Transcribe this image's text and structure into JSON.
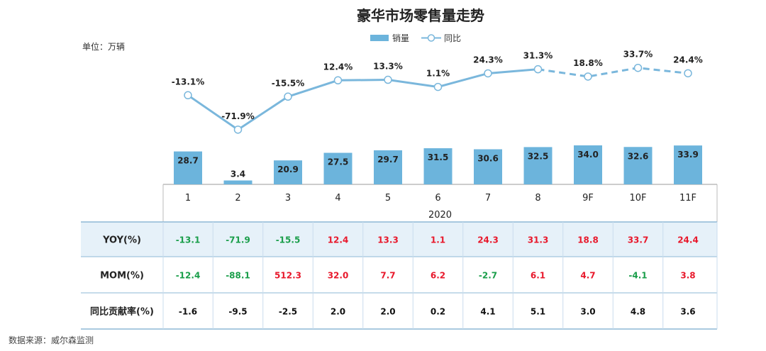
{
  "title": "豪华市场零售量走势",
  "unit_label": "单位：万辆",
  "source": "数据来源：威尔森监测",
  "colors": {
    "bar": "#6cb4dc",
    "line": "#7ab7dc",
    "positive": "#e8192c",
    "negative": "#1a9e4a",
    "neutral": "#111111",
    "yoy_row_bg": "#e6f1f9",
    "border": "#8db8d6"
  },
  "chart_data": {
    "type": "bar",
    "title": "豪华市场零售量走势",
    "unit": "万辆",
    "categories": [
      "1",
      "2",
      "3",
      "4",
      "5",
      "6",
      "7",
      "8",
      "9F",
      "10F",
      "11F"
    ],
    "year_label": "2020",
    "series": [
      {
        "name": "销量",
        "type": "bar",
        "values": [
          28.7,
          3.4,
          20.9,
          27.5,
          29.7,
          31.5,
          30.6,
          32.5,
          34.0,
          32.6,
          33.9
        ],
        "labels": [
          "28.7",
          "3.4",
          "20.9",
          "27.5",
          "29.7",
          "31.5",
          "30.6",
          "32.5",
          "34.0",
          "32.6",
          "33.9"
        ]
      },
      {
        "name": "同比",
        "type": "line",
        "values": [
          -13.1,
          -71.9,
          -15.5,
          12.4,
          13.3,
          1.1,
          24.3,
          31.3,
          18.8,
          33.7,
          24.4
        ],
        "labels": [
          "-13.1%",
          "-71.9%",
          "-15.5%",
          "12.4%",
          "13.3%",
          "1.1%",
          "24.3%",
          "31.3%",
          "18.8%",
          "33.7%",
          "24.4%"
        ],
        "dashed_from_index": 7
      }
    ],
    "legend": [
      {
        "name": "销量",
        "marker": "bar"
      },
      {
        "name": "同比",
        "marker": "line-circle"
      }
    ],
    "legend_position": "top-center",
    "grid": false,
    "table": {
      "rows": [
        {
          "label": "YOY(%)",
          "values": [
            "-13.1",
            "-71.9",
            "-15.5",
            "12.4",
            "13.3",
            "1.1",
            "24.3",
            "31.3",
            "18.8",
            "33.7",
            "24.4"
          ],
          "colors": [
            "negative",
            "negative",
            "negative",
            "positive",
            "positive",
            "positive",
            "positive",
            "positive",
            "positive",
            "positive",
            "positive"
          ],
          "shaded": true
        },
        {
          "label": "MOM(%)",
          "values": [
            "-12.4",
            "-88.1",
            "512.3",
            "32.0",
            "7.7",
            "6.2",
            "-2.7",
            "6.1",
            "4.7",
            "-4.1",
            "3.8"
          ],
          "colors": [
            "negative",
            "negative",
            "positive",
            "positive",
            "positive",
            "positive",
            "negative",
            "positive",
            "positive",
            "negative",
            "positive"
          ],
          "shaded": false
        },
        {
          "label": "同比贡献率(%)",
          "values": [
            "-1.6",
            "-9.5",
            "-2.5",
            "2.0",
            "2.0",
            "0.2",
            "4.1",
            "5.1",
            "3.0",
            "4.8",
            "3.6"
          ],
          "colors": [
            "neutral",
            "neutral",
            "neutral",
            "neutral",
            "neutral",
            "neutral",
            "neutral",
            "neutral",
            "neutral",
            "neutral",
            "neutral"
          ],
          "shaded": false
        }
      ]
    }
  }
}
